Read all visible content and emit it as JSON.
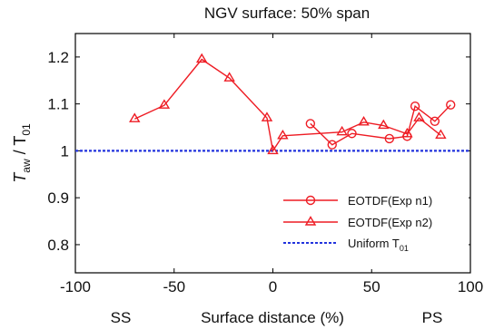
{
  "chart_data": {
    "type": "line",
    "title": "NGV surface: 50% span",
    "xlabel": "Surface distance (%)",
    "xlabel_left": "SS",
    "xlabel_right": "PS",
    "ylabel": {
      "main": "T",
      "sub1": "aw",
      "slash": " / T",
      "sub2": "01"
    },
    "xlim": [
      -100,
      100
    ],
    "ylim": [
      0.74,
      1.25
    ],
    "xticks": [
      -100,
      -50,
      0,
      50,
      100
    ],
    "yticks": [
      0.8,
      0.9,
      1,
      1.1,
      1.2
    ],
    "xtick_labels": [
      "-100",
      "-50",
      "0",
      "50",
      "100"
    ],
    "ytick_labels": [
      "0.8",
      "0.9",
      "1",
      "1.1",
      "1.2"
    ],
    "grid": false,
    "legend_position": "bottom-right",
    "series": [
      {
        "name": "EOTDF(Exp n1)",
        "marker": "circle",
        "color": "#ee1c24",
        "points": [
          [
            19,
            1.058
          ],
          [
            30,
            1.013
          ],
          [
            40,
            1.037
          ],
          [
            59,
            1.026
          ],
          [
            68,
            1.031
          ],
          [
            72,
            1.095
          ],
          [
            82,
            1.063
          ],
          [
            90,
            1.098
          ]
        ]
      },
      {
        "name": "EOTDF(Exp n2)",
        "marker": "triangle",
        "color": "#ee1c24",
        "points": [
          [
            -70,
            1.068
          ],
          [
            -55,
            1.097
          ],
          [
            -36,
            1.195
          ],
          [
            -22,
            1.155
          ],
          [
            -3,
            1.07
          ],
          [
            0,
            1.0
          ],
          [
            5,
            1.032
          ],
          [
            35,
            1.04
          ],
          [
            46,
            1.061
          ],
          [
            56,
            1.054
          ],
          [
            68,
            1.036
          ],
          [
            74,
            1.07
          ],
          [
            85,
            1.033
          ]
        ]
      }
    ],
    "reference_line": {
      "name_main": "Uniform T",
      "name_sub": "01",
      "y": 1.0,
      "color": "#2233dd",
      "style": "dashed"
    }
  }
}
